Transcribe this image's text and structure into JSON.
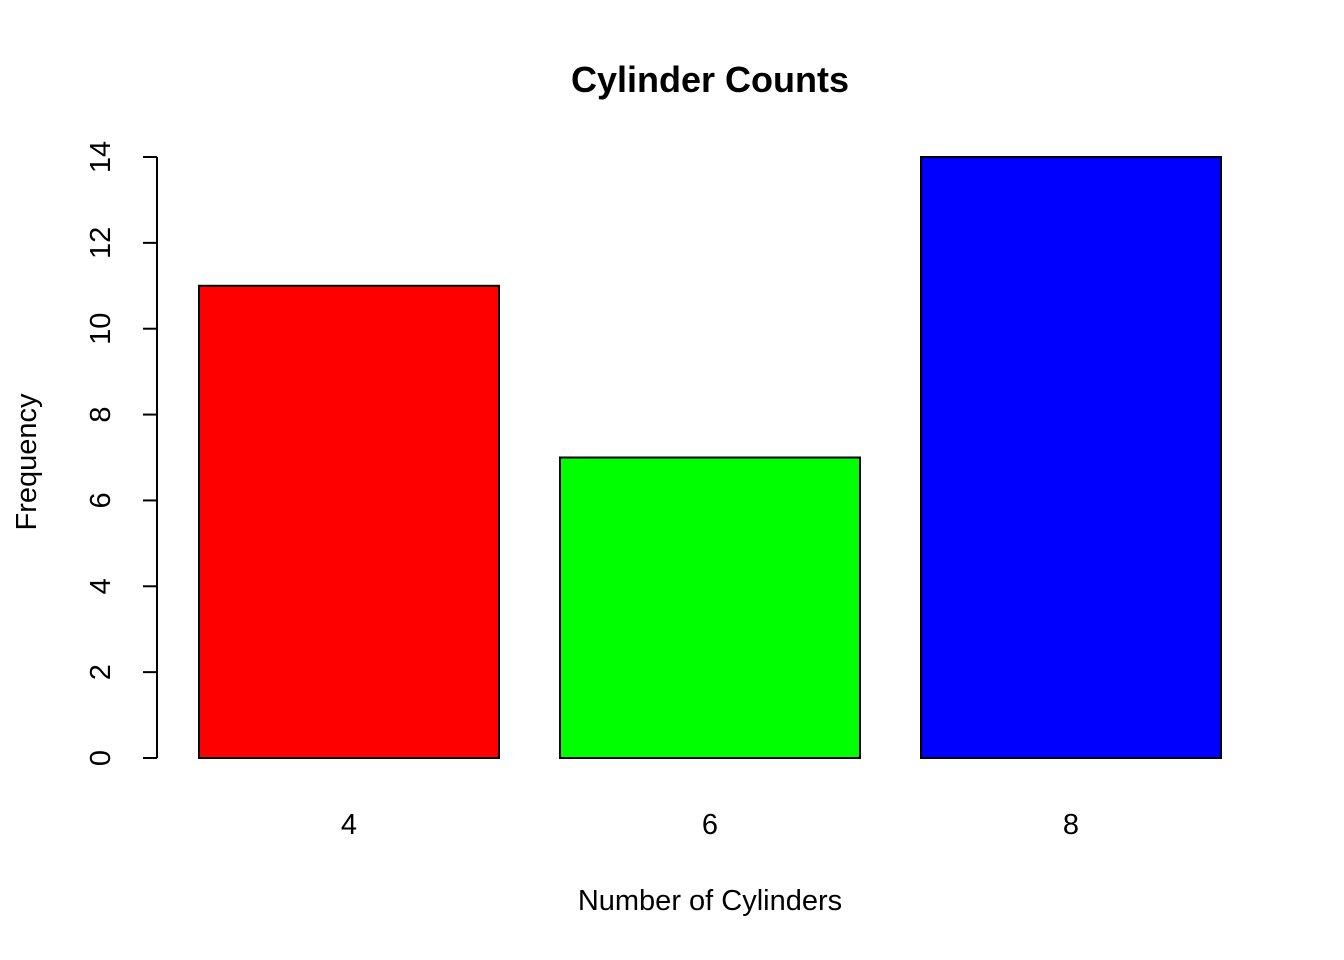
{
  "chart_data": {
    "type": "bar",
    "title": "Cylinder Counts",
    "xlabel": "Number of Cylinders",
    "ylabel": "Frequency",
    "categories": [
      "4",
      "6",
      "8"
    ],
    "values": [
      11,
      7,
      14
    ],
    "colors": [
      "#FF0000",
      "#00FF00",
      "#0000FF"
    ],
    "border_color": "#000000",
    "ylim": [
      0,
      14
    ],
    "yticks": [
      0,
      2,
      4,
      6,
      8,
      10,
      12,
      14
    ],
    "ytick_labels": [
      "0",
      "2",
      "4",
      "6",
      "8",
      "10",
      "12",
      "14"
    ],
    "grid": false,
    "legend": "none"
  }
}
